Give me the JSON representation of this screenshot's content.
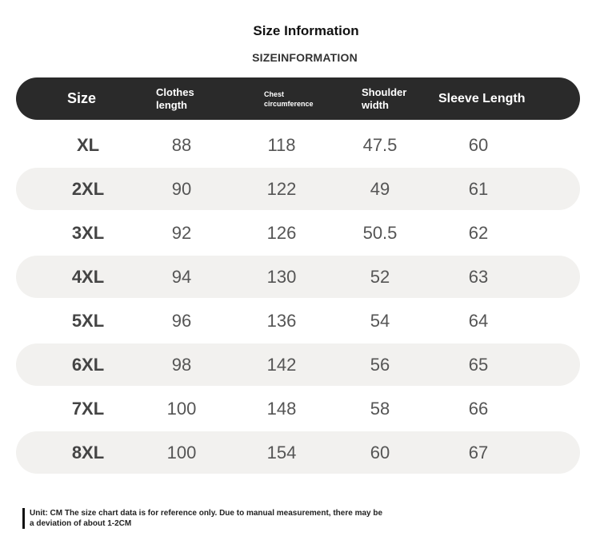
{
  "title": "Size Information",
  "subtitle": "SIZEINFORMATION",
  "headers": {
    "size": "Size",
    "clothes_line1": "Clothes",
    "clothes_line2": "length",
    "chest_line1": "Chest",
    "chest_line2": "circumference",
    "shoulder_line1": "Shoulder",
    "shoulder_line2": "width",
    "sleeve": "Sleeve Length"
  },
  "rows": [
    {
      "size": "XL",
      "clothes": "88",
      "chest": "118",
      "shoulder": "47.5",
      "sleeve": "60"
    },
    {
      "size": "2XL",
      "clothes": "90",
      "chest": "122",
      "shoulder": "49",
      "sleeve": "61"
    },
    {
      "size": "3XL",
      "clothes": "92",
      "chest": "126",
      "shoulder": "50.5",
      "sleeve": "62"
    },
    {
      "size": "4XL",
      "clothes": "94",
      "chest": "130",
      "shoulder": "52",
      "sleeve": "63"
    },
    {
      "size": "5XL",
      "clothes": "96",
      "chest": "136",
      "shoulder": "54",
      "sleeve": "64"
    },
    {
      "size": "6XL",
      "clothes": "98",
      "chest": "142",
      "shoulder": "56",
      "sleeve": "65"
    },
    {
      "size": "7XL",
      "clothes": "100",
      "chest": "148",
      "shoulder": "58",
      "sleeve": "66"
    },
    {
      "size": "8XL",
      "clothes": "100",
      "chest": "154",
      "shoulder": "60",
      "sleeve": "67"
    }
  ],
  "note_line1": "Unit: CM The size chart data is for reference only. Due to manual measurement, there may be",
  "note_line2": "a deviation of about 1-2CM",
  "colors": {
    "header_bg": "#2a2a2a",
    "row_shade": "#f2f1ef"
  }
}
